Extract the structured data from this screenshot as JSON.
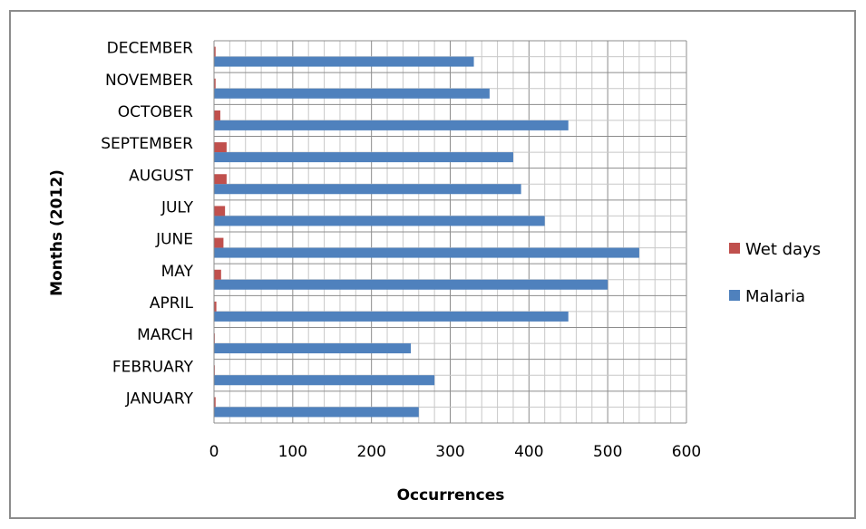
{
  "chart_data": {
    "type": "bar",
    "orientation": "horizontal",
    "categories": [
      "JANUARY",
      "FEBRUARY",
      "MARCH",
      "APRIL",
      "MAY",
      "JUNE",
      "JULY",
      "AUGUST",
      "SEPTEMBER",
      "OCTOBER",
      "NOVEMBER",
      "DECEMBER"
    ],
    "series": [
      {
        "name": "Wet days",
        "color": "#c0504d",
        "values": [
          2,
          1,
          1,
          3,
          9,
          12,
          14,
          16,
          16,
          8,
          2,
          2
        ]
      },
      {
        "name": "Malaria",
        "color": "#4f81bd",
        "values": [
          260,
          280,
          250,
          450,
          500,
          540,
          420,
          390,
          380,
          450,
          350,
          330
        ]
      }
    ],
    "title": "",
    "xlabel": "Occurrences",
    "ylabel": "Months (2012)",
    "xlim": [
      0,
      600
    ],
    "xticks": [
      0,
      100,
      200,
      300,
      400,
      500,
      600
    ],
    "grid": true,
    "legend_position": "right"
  }
}
